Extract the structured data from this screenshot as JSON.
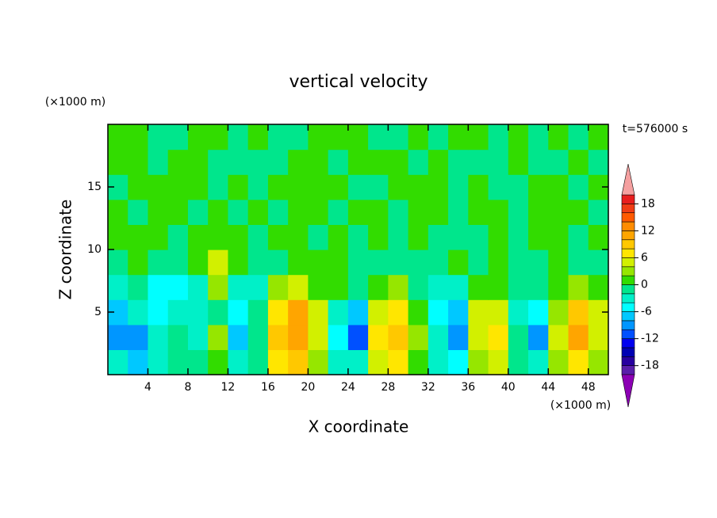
{
  "chart_data": {
    "type": "contour",
    "title": "vertical velocity",
    "xlabel": "X coordinate",
    "ylabel": "Z coordinate",
    "x_unit": "(×1000 m)",
    "y_unit": "(×1000 m)",
    "time_label": "t=576000 s",
    "xlim": [
      0,
      50
    ],
    "ylim": [
      0,
      20
    ],
    "xticks": [
      4,
      8,
      12,
      16,
      20,
      24,
      28,
      32,
      36,
      40,
      44,
      48
    ],
    "yticks": [
      5,
      10,
      15
    ],
    "x": [
      1,
      3,
      5,
      7,
      9,
      11,
      13,
      15,
      17,
      19,
      21,
      23,
      25,
      27,
      29,
      31,
      33,
      35,
      37,
      39,
      41,
      43,
      45,
      47,
      49
    ],
    "y": [
      1,
      3,
      5,
      7,
      9,
      11,
      13,
      15,
      17,
      19
    ],
    "z": [
      [
        -4,
        -8,
        -3,
        -1,
        -1,
        1,
        -4,
        -1,
        6,
        8,
        3,
        -3,
        -4,
        5,
        7,
        1,
        -3,
        -6,
        3,
        4,
        -1,
        -4,
        2,
        7,
        3
      ],
      [
        -10,
        -9,
        -4,
        -2,
        -3,
        2,
        -8,
        -2,
        8,
        11,
        5,
        -5,
        -12,
        7,
        9,
        2,
        -4,
        -10,
        5,
        6,
        -2,
        -10,
        4,
        11,
        5
      ],
      [
        -8,
        -4,
        -5,
        -4,
        -3,
        -1,
        -6,
        -2,
        7,
        10,
        5,
        -3,
        -8,
        4,
        6,
        1,
        -5,
        -7,
        4,
        5,
        -3,
        -6,
        3,
        9,
        4
      ],
      [
        -3,
        -2,
        -5,
        -5,
        -3,
        3,
        -3,
        -3,
        2,
        4,
        1,
        1,
        -2,
        1,
        2,
        -1,
        -4,
        -3,
        1,
        1,
        -2,
        -2,
        0.5,
        3,
        1
      ],
      [
        -0.5,
        0.5,
        -2,
        -1,
        1,
        4,
        0.5,
        -1,
        -0.5,
        0.5,
        0.5,
        1,
        -0.5,
        -0.5,
        -0.5,
        -0.5,
        -0.5,
        0.5,
        -0.5,
        0.5,
        -0.5,
        -1,
        0.5,
        -0.5,
        -0.5
      ],
      [
        0.5,
        0.5,
        0.5,
        -0.5,
        0.5,
        1,
        0.5,
        -0.5,
        0.5,
        0.5,
        -0.5,
        0.5,
        -0.5,
        0.5,
        -0.5,
        0.5,
        -0.5,
        -0.5,
        -0.5,
        0.5,
        -0.5,
        0.5,
        0.5,
        -0.5,
        0.5
      ],
      [
        0.5,
        -0.5,
        0.5,
        0.5,
        -0.5,
        0.5,
        -0.5,
        0.5,
        -0.5,
        0.5,
        0.5,
        -0.5,
        0.5,
        0.5,
        -0.5,
        0.5,
        0.5,
        -0.5,
        0.5,
        0.5,
        -0.5,
        0.5,
        0.5,
        0.5,
        -0.5
      ],
      [
        -0.5,
        0.5,
        0.5,
        0.5,
        0.5,
        -0.5,
        0.5,
        -0.5,
        0.5,
        0.5,
        0.5,
        0.5,
        -0.5,
        -0.5,
        0.5,
        0.5,
        0.5,
        -0.5,
        0.5,
        -0.5,
        -0.5,
        0.5,
        0.5,
        -0.5,
        0.5
      ],
      [
        0.5,
        0.5,
        -0.5,
        0.5,
        0.5,
        -0.5,
        -0.5,
        -0.5,
        -0.5,
        0.5,
        0.5,
        -0.5,
        0.5,
        0.5,
        0.5,
        -0.5,
        0.5,
        -0.5,
        -0.5,
        -0.5,
        0.5,
        -0.5,
        -0.5,
        0.5,
        -0.5
      ],
      [
        0.5,
        0.5,
        -0.5,
        -0.5,
        0.5,
        0.5,
        -0.5,
        0.5,
        -0.5,
        -0.5,
        0.5,
        0.5,
        0.5,
        -0.5,
        -0.5,
        0.5,
        -0.5,
        0.5,
        0.5,
        -0.5,
        0.5,
        -0.5,
        0.5,
        -0.5,
        0.5
      ]
    ],
    "levels": [
      -20,
      -18,
      -16,
      -14,
      -12,
      -10,
      -8,
      -6,
      -4,
      -2,
      0,
      2,
      4,
      6,
      8,
      10,
      12,
      14,
      16,
      18,
      20
    ],
    "colors": [
      "#5a1eaa",
      "#2800a0",
      "#0000b4",
      "#0000f0",
      "#0050ff",
      "#0096ff",
      "#00c8ff",
      "#00ffff",
      "#00f0c8",
      "#00e68c",
      "#32dc00",
      "#96e600",
      "#d2f000",
      "#ffe600",
      "#ffc800",
      "#ffa500",
      "#ff8c00",
      "#ff5a00",
      "#f03c14",
      "#e81e1e"
    ],
    "over_color": "#f5a0a0",
    "under_color": "#8c00b4",
    "colorbar_ticks": [
      -18,
      -12,
      -6,
      0,
      6,
      12,
      18
    ]
  }
}
